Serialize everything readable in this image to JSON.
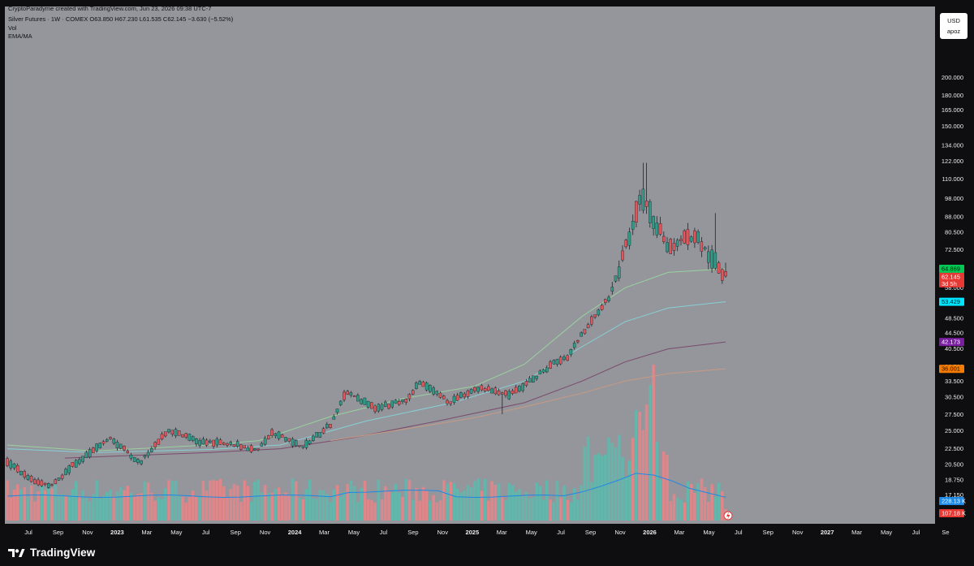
{
  "header": {
    "credit": "CryptoParadyme created with TradingView.com, Jun 23, 2026 09:38 UTC-7",
    "ohlc": "Silver Futures · 1W · COMEX  O63.850  H67.230  L61.535  C62.145  −3.630 (−5.52%)",
    "vol_label": "Vol",
    "ema_label": "EMA/MA"
  },
  "currency_box": {
    "currency": "USD",
    "user": "apoz"
  },
  "branding": {
    "name": "TradingView"
  },
  "chart_data": {
    "type": "candlestick",
    "symbol": "Silver Futures",
    "interval": "1W",
    "exchange": "COMEX",
    "scale": "log",
    "ylim": [
      15.4,
      230
    ],
    "y_ticks": [
      "200.000",
      "180.000",
      "165.000",
      "150.000",
      "134.000",
      "122.000",
      "110.000",
      "98.000",
      "88.000",
      "80.500",
      "72.500",
      "65.000",
      "58.000",
      "53.500",
      "48.500",
      "44.500",
      "40.500",
      "36.500",
      "33.500",
      "30.500",
      "27.500",
      "25.000",
      "22.500",
      "20.500",
      "18.750",
      "17.150",
      "15.400"
    ],
    "x_ticks": [
      {
        "label": "Jul",
        "bold": false
      },
      {
        "label": "Sep",
        "bold": false
      },
      {
        "label": "Nov",
        "bold": false
      },
      {
        "label": "2023",
        "bold": true
      },
      {
        "label": "Mar",
        "bold": false
      },
      {
        "label": "May",
        "bold": false
      },
      {
        "label": "Jul",
        "bold": false
      },
      {
        "label": "Sep",
        "bold": false
      },
      {
        "label": "Nov",
        "bold": false
      },
      {
        "label": "2024",
        "bold": true
      },
      {
        "label": "Mar",
        "bold": false
      },
      {
        "label": "May",
        "bold": false
      },
      {
        "label": "Jul",
        "bold": false
      },
      {
        "label": "Sep",
        "bold": false
      },
      {
        "label": "Nov",
        "bold": false
      },
      {
        "label": "2025",
        "bold": true
      },
      {
        "label": "Mar",
        "bold": false
      },
      {
        "label": "May",
        "bold": false
      },
      {
        "label": "Jul",
        "bold": false
      },
      {
        "label": "Sep",
        "bold": false
      },
      {
        "label": "Nov",
        "bold": false
      },
      {
        "label": "2026",
        "bold": true
      },
      {
        "label": "Mar",
        "bold": false
      },
      {
        "label": "May",
        "bold": false
      },
      {
        "label": "Jul",
        "bold": false
      },
      {
        "label": "Sep",
        "bold": false
      },
      {
        "label": "Nov",
        "bold": false
      },
      {
        "label": "2027",
        "bold": true
      },
      {
        "label": "Mar",
        "bold": false
      },
      {
        "label": "May",
        "bold": false
      },
      {
        "label": "Jul",
        "bold": false
      },
      {
        "label": "Se",
        "bold": false
      }
    ],
    "last_candle": {
      "open": 63.85,
      "high": 67.23,
      "low": 61.535,
      "close": 62.145,
      "change": -3.63,
      "change_pct": -5.52
    },
    "path": [
      {
        "x": "2022-06",
        "y": 20.8
      },
      {
        "x": "2022-08",
        "y": 18.5
      },
      {
        "x": "2022-09",
        "y": 18.1
      },
      {
        "x": "2022-11",
        "y": 21.2
      },
      {
        "x": "2023-01",
        "y": 23.9
      },
      {
        "x": "2023-03",
        "y": 20.8
      },
      {
        "x": "2023-05",
        "y": 25.2
      },
      {
        "x": "2023-07",
        "y": 23.5
      },
      {
        "x": "2023-09",
        "y": 23.2
      },
      {
        "x": "2023-11",
        "y": 22.3
      },
      {
        "x": "2023-12",
        "y": 24.8
      },
      {
        "x": "2024-02",
        "y": 22.7
      },
      {
        "x": "2024-04",
        "y": 26.0
      },
      {
        "x": "2024-05",
        "y": 31.5
      },
      {
        "x": "2024-07",
        "y": 28.6
      },
      {
        "x": "2024-09",
        "y": 29.8
      },
      {
        "x": "2024-10",
        "y": 33.5
      },
      {
        "x": "2024-12",
        "y": 29.5
      },
      {
        "x": "2025-02",
        "y": 32.3
      },
      {
        "x": "2025-04",
        "y": 30.8
      },
      {
        "x": "2025-05",
        "y": 32.5
      },
      {
        "x": "2025-07",
        "y": 37.0
      },
      {
        "x": "2025-08",
        "y": 38.5
      },
      {
        "x": "2025-10",
        "y": 50.0
      },
      {
        "x": "2025-11",
        "y": 56.0
      },
      {
        "x": "2025-12",
        "y": 75.0
      },
      {
        "x": "2026-01",
        "y": 100.0
      },
      {
        "x": "2026-02",
        "y": 85.0
      },
      {
        "x": "2026-03",
        "y": 73.0
      },
      {
        "x": "2026-04",
        "y": 78.0
      },
      {
        "x": "2026-05",
        "y": 76.0
      },
      {
        "x": "2026-06",
        "y": 62.145
      }
    ],
    "indicators": [
      {
        "legend": "64.869",
        "color": "#00c853",
        "line_color": "#9ad29e",
        "points": [
          [
            0,
            23.0
          ],
          [
            0.12,
            22.2
          ],
          [
            0.28,
            23.0
          ],
          [
            0.35,
            23.6
          ],
          [
            0.45,
            27.2
          ],
          [
            0.55,
            30.2
          ],
          [
            0.65,
            32.5
          ],
          [
            0.72,
            37.0
          ],
          [
            0.8,
            49.0
          ],
          [
            0.86,
            58.0
          ],
          [
            0.92,
            63.5
          ],
          [
            1.0,
            64.869
          ]
        ]
      },
      {
        "legend": "53.429",
        "color": "#00e5ff",
        "line_color": "#86d0d6",
        "points": [
          [
            0,
            22.5
          ],
          [
            0.12,
            22.0
          ],
          [
            0.28,
            22.4
          ],
          [
            0.38,
            23.0
          ],
          [
            0.5,
            26.5
          ],
          [
            0.62,
            29.5
          ],
          [
            0.72,
            33.5
          ],
          [
            0.8,
            41.0
          ],
          [
            0.86,
            47.5
          ],
          [
            0.92,
            51.5
          ],
          [
            1.0,
            53.429
          ]
        ]
      },
      {
        "legend": "42.173",
        "color": "#7b1fa2",
        "line_color": "#7a4a6c",
        "points": [
          [
            0.08,
            21.3
          ],
          [
            0.28,
            22.0
          ],
          [
            0.38,
            22.5
          ],
          [
            0.48,
            24.0
          ],
          [
            0.6,
            26.5
          ],
          [
            0.72,
            29.5
          ],
          [
            0.8,
            33.5
          ],
          [
            0.86,
            37.5
          ],
          [
            0.92,
            40.5
          ],
          [
            1.0,
            42.173
          ]
        ]
      },
      {
        "legend": "36.001",
        "color": "#f57c00",
        "line_color": "#c89a82",
        "points": [
          [
            0.45,
            23.6
          ],
          [
            0.55,
            25.2
          ],
          [
            0.65,
            27.0
          ],
          [
            0.72,
            28.8
          ],
          [
            0.8,
            31.2
          ],
          [
            0.86,
            33.5
          ],
          [
            0.92,
            35.0
          ],
          [
            1.0,
            36.001
          ]
        ]
      }
    ],
    "volume": {
      "ma_legend": "228.13 K",
      "last_legend": "107.18 K",
      "ma_color": "#1e88e5",
      "last_color": "#e53935"
    },
    "current_price": {
      "value": "62.145",
      "countdown": "3d 5h",
      "color": "#e53935"
    },
    "grid": false,
    "legend_position": "right-axis"
  }
}
